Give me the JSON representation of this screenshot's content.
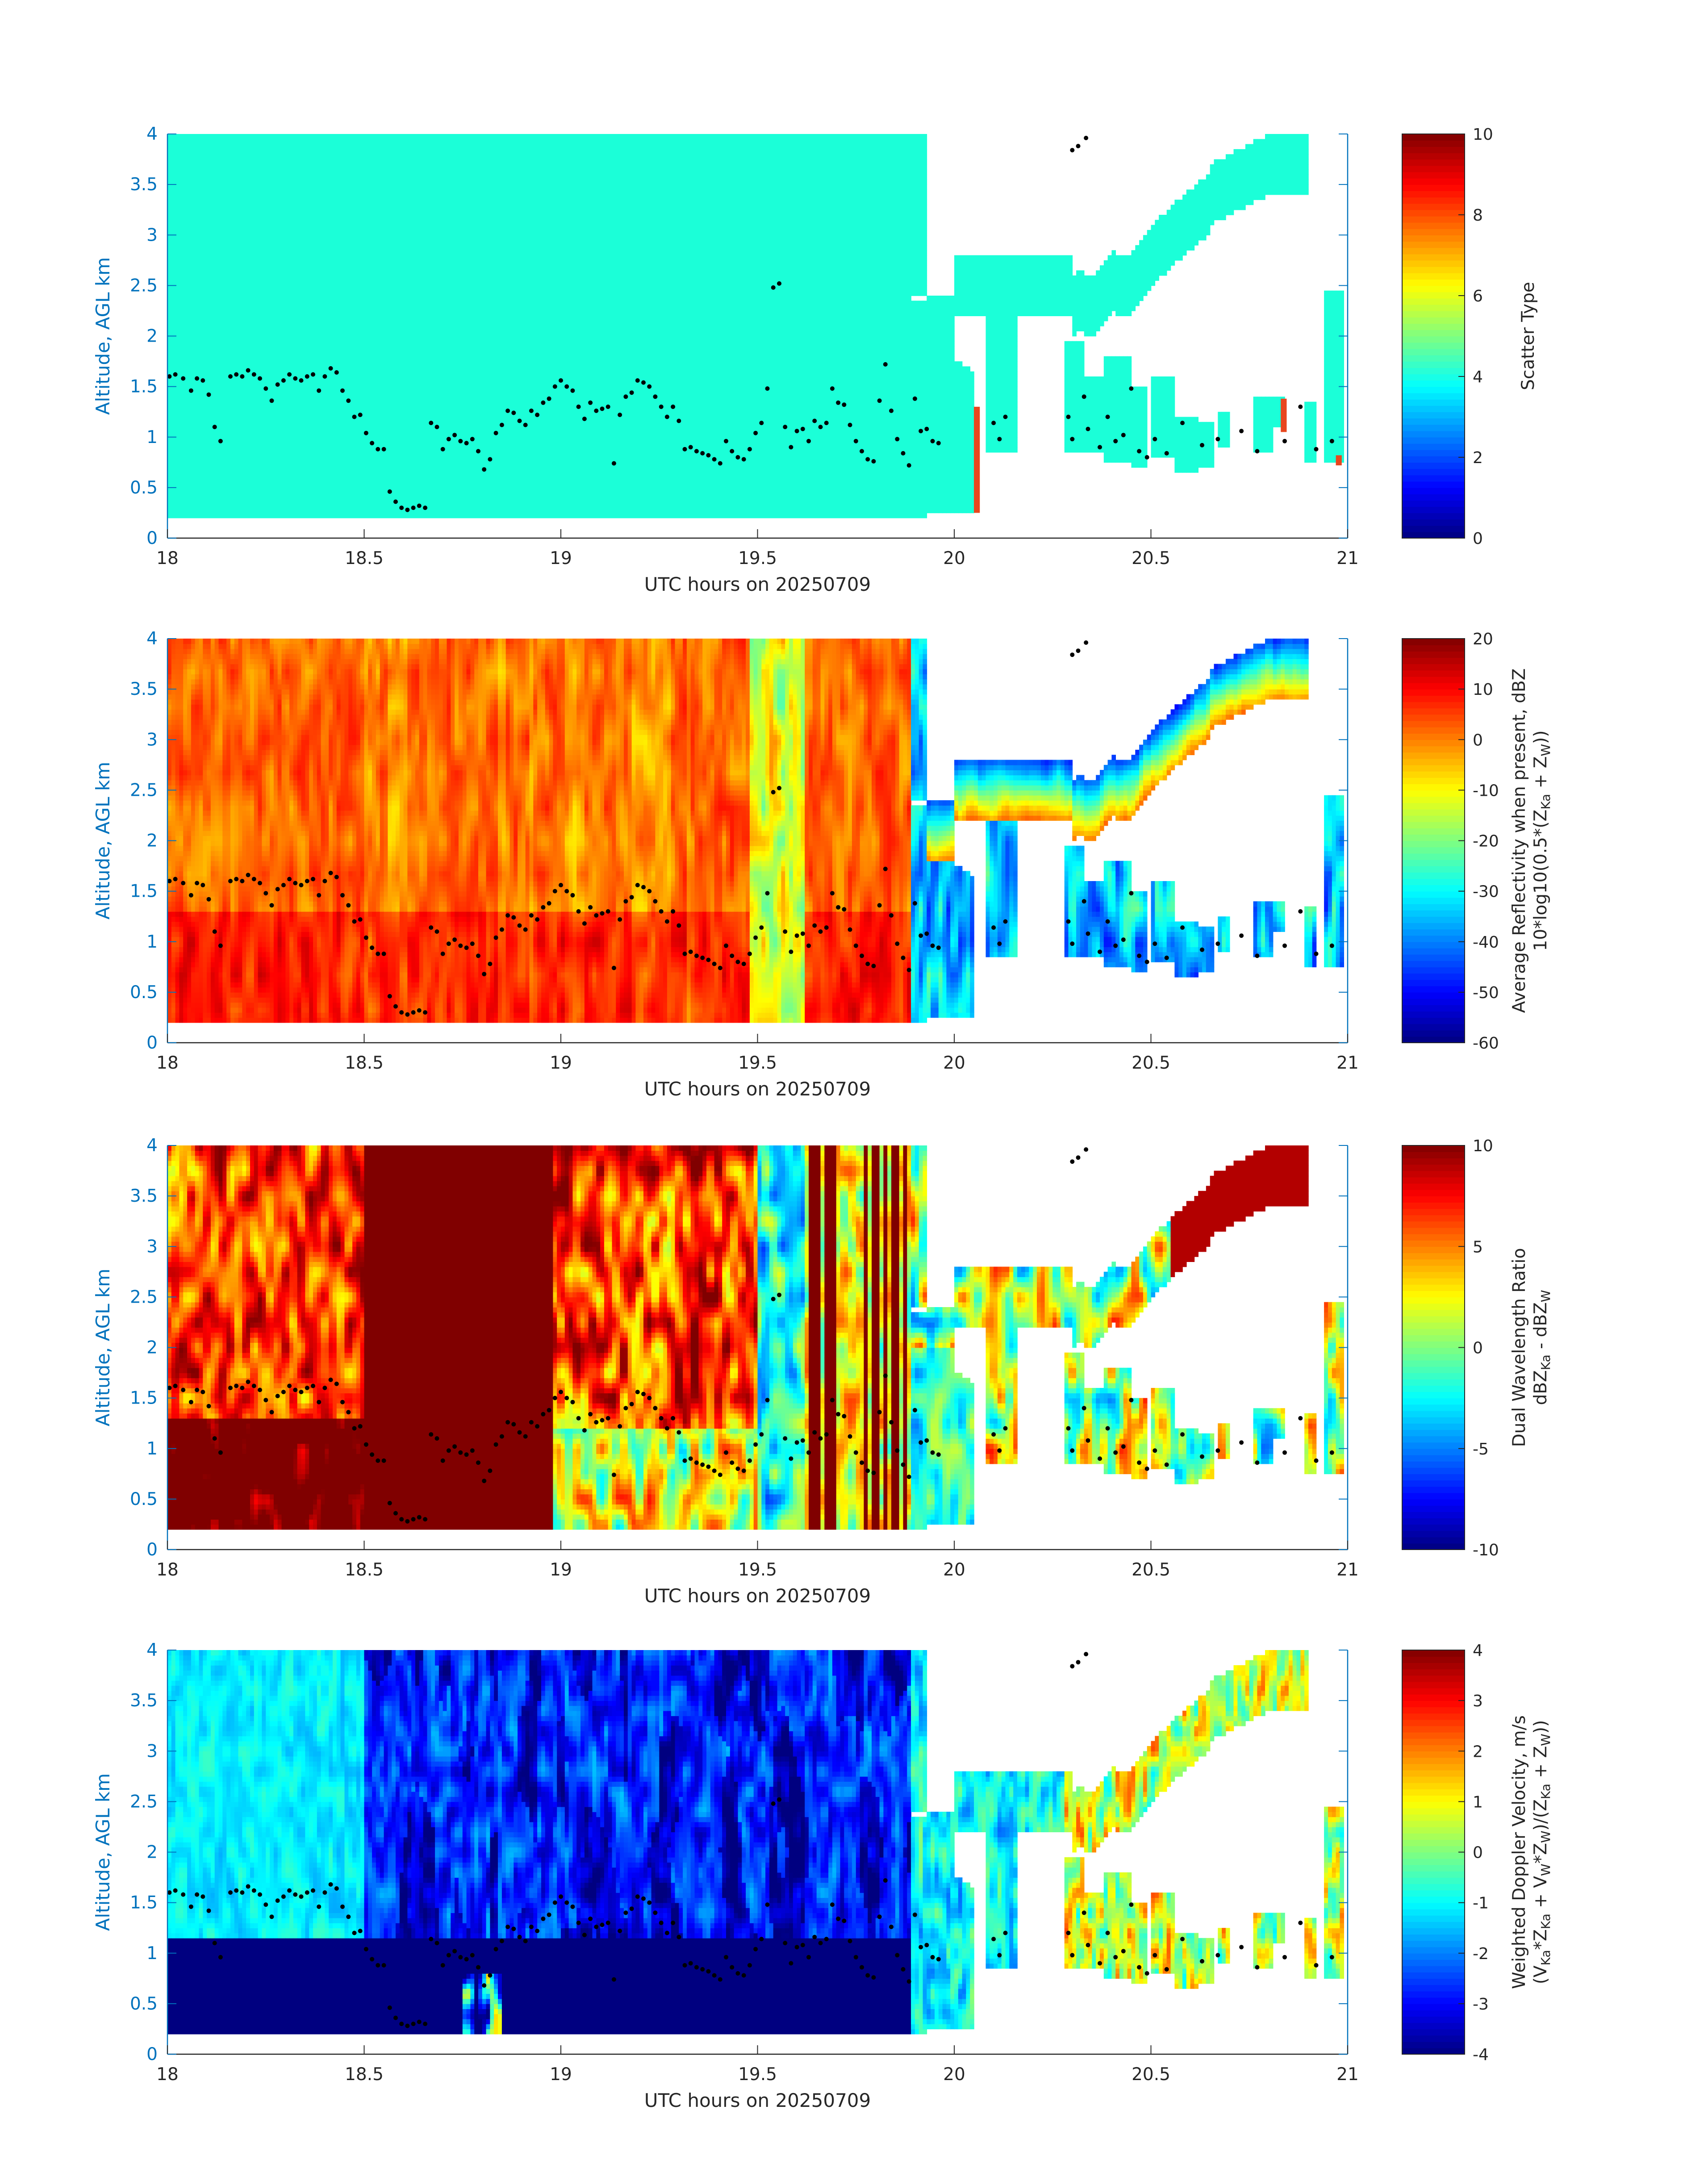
{
  "colors": {
    "axis_blue": "#0072BD",
    "text": "#262626",
    "scatter_fill": "#1BFFD8",
    "markers": "#000000",
    "anomaly": "#E8461E"
  },
  "colormap": "jet",
  "chart_data": [
    {
      "type": "heatmap",
      "name": "scatter-type",
      "xlabel": "UTC hours on 20250709",
      "ylabel": "Altitude, AGL km",
      "xlim": [
        18,
        21
      ],
      "ylim": [
        0,
        4
      ],
      "xticks": [
        "18",
        "18.5",
        "19",
        "19.5",
        "20",
        "20.5",
        "21"
      ],
      "yticks": [
        "0",
        "0.5",
        "1",
        "1.5",
        "2",
        "2.5",
        "3",
        "3.5",
        "4"
      ],
      "colorbar": {
        "label_lines": [
          "Scatter Type"
        ],
        "range": [
          0,
          10
        ],
        "ticks": [
          "0",
          "2",
          "4",
          "6",
          "8",
          "10"
        ]
      },
      "dominant_value": 4,
      "cloud_base_km": 0.2
    },
    {
      "type": "heatmap",
      "name": "average-reflectivity",
      "xlabel": "UTC hours on 20250709",
      "ylabel": "Altitude, AGL km",
      "xlim": [
        18,
        21
      ],
      "ylim": [
        0,
        4
      ],
      "xticks": [
        "18",
        "18.5",
        "19",
        "19.5",
        "20",
        "20.5",
        "21"
      ],
      "yticks": [
        "0",
        "0.5",
        "1",
        "1.5",
        "2",
        "2.5",
        "3",
        "3.5",
        "4"
      ],
      "colorbar": {
        "label_lines": [
          "Average Reflectivity when present, dBZ",
          "10*log10(0.5*(Z",
          "Ka",
          " + Z",
          "W",
          "))"
        ],
        "range": [
          -60,
          20
        ],
        "ticks": [
          "-60",
          "-50",
          "-40",
          "-30",
          "-20",
          "-10",
          "0",
          "10",
          "20"
        ]
      }
    },
    {
      "type": "heatmap",
      "name": "dual-wavelength-ratio",
      "xlabel": "UTC hours on 20250709",
      "ylabel": "Altitude, AGL km",
      "xlim": [
        18,
        21
      ],
      "ylim": [
        0,
        4
      ],
      "xticks": [
        "18",
        "18.5",
        "19",
        "19.5",
        "20",
        "20.5",
        "21"
      ],
      "yticks": [
        "0",
        "0.5",
        "1",
        "1.5",
        "2",
        "2.5",
        "3",
        "3.5",
        "4"
      ],
      "colorbar": {
        "label_lines": [
          "Dual Wavelength Ratio",
          "dBZ",
          "Ka",
          " - dBZ",
          "W"
        ],
        "range": [
          -10,
          10
        ],
        "ticks": [
          "-10",
          "-5",
          "0",
          "5",
          "10"
        ]
      }
    },
    {
      "type": "heatmap",
      "name": "weighted-doppler-velocity",
      "xlabel": "UTC hours on 20250709",
      "ylabel": "Altitude, AGL km",
      "xlim": [
        18,
        21
      ],
      "ylim": [
        0,
        4
      ],
      "xticks": [
        "18",
        "18.5",
        "19",
        "19.5",
        "20",
        "20.5",
        "21"
      ],
      "yticks": [
        "0",
        "0.5",
        "1",
        "1.5",
        "2",
        "2.5",
        "3",
        "3.5",
        "4"
      ],
      "colorbar": {
        "label_lines": [
          "Weighted Doppler Velocity, m/s",
          "(V",
          "Ka",
          "*Z",
          "Ka",
          " + V",
          "W",
          "*Z",
          "W",
          ")/(Z",
          "Ka",
          " + Z",
          "W",
          "))"
        ],
        "range": [
          -4,
          4
        ],
        "ticks": [
          "-4",
          "-3",
          "-2",
          "-1",
          "0",
          "1",
          "2",
          "3",
          "4"
        ]
      }
    }
  ],
  "ceilometer_points": [
    [
      18.005,
      1.6
    ],
    [
      18.02,
      1.62
    ],
    [
      18.04,
      1.58
    ],
    [
      18.06,
      1.46
    ],
    [
      18.075,
      1.58
    ],
    [
      18.09,
      1.56
    ],
    [
      18.105,
      1.42
    ],
    [
      18.12,
      1.1
    ],
    [
      18.135,
      0.96
    ],
    [
      18.16,
      1.6
    ],
    [
      18.175,
      1.62
    ],
    [
      18.19,
      1.6
    ],
    [
      18.205,
      1.66
    ],
    [
      18.22,
      1.62
    ],
    [
      18.235,
      1.58
    ],
    [
      18.25,
      1.48
    ],
    [
      18.265,
      1.36
    ],
    [
      18.28,
      1.52
    ],
    [
      18.295,
      1.56
    ],
    [
      18.31,
      1.62
    ],
    [
      18.325,
      1.58
    ],
    [
      18.34,
      1.56
    ],
    [
      18.355,
      1.6
    ],
    [
      18.37,
      1.62
    ],
    [
      18.385,
      1.46
    ],
    [
      18.4,
      1.6
    ],
    [
      18.415,
      1.68
    ],
    [
      18.43,
      1.64
    ],
    [
      18.445,
      1.46
    ],
    [
      18.46,
      1.36
    ],
    [
      18.475,
      1.2
    ],
    [
      18.49,
      1.22
    ],
    [
      18.505,
      1.04
    ],
    [
      18.52,
      0.94
    ],
    [
      18.535,
      0.88
    ],
    [
      18.55,
      0.88
    ],
    [
      18.565,
      0.46
    ],
    [
      18.58,
      0.36
    ],
    [
      18.595,
      0.3
    ],
    [
      18.61,
      0.28
    ],
    [
      18.625,
      0.3
    ],
    [
      18.64,
      0.32
    ],
    [
      18.655,
      0.3
    ],
    [
      18.67,
      1.14
    ],
    [
      18.685,
      1.1
    ],
    [
      18.7,
      0.88
    ],
    [
      18.715,
      0.98
    ],
    [
      18.73,
      1.02
    ],
    [
      18.745,
      0.96
    ],
    [
      18.76,
      0.94
    ],
    [
      18.775,
      0.98
    ],
    [
      18.79,
      0.86
    ],
    [
      18.805,
      0.68
    ],
    [
      18.82,
      0.78
    ],
    [
      18.835,
      1.04
    ],
    [
      18.85,
      1.12
    ],
    [
      18.865,
      1.26
    ],
    [
      18.88,
      1.24
    ],
    [
      18.895,
      1.16
    ],
    [
      18.91,
      1.12
    ],
    [
      18.925,
      1.26
    ],
    [
      18.94,
      1.22
    ],
    [
      18.955,
      1.34
    ],
    [
      18.97,
      1.38
    ],
    [
      18.985,
      1.5
    ],
    [
      19.0,
      1.56
    ],
    [
      19.015,
      1.5
    ],
    [
      19.03,
      1.46
    ],
    [
      19.045,
      1.3
    ],
    [
      19.06,
      1.18
    ],
    [
      19.075,
      1.34
    ],
    [
      19.09,
      1.26
    ],
    [
      19.105,
      1.28
    ],
    [
      19.12,
      1.3
    ],
    [
      19.135,
      0.74
    ],
    [
      19.15,
      1.22
    ],
    [
      19.165,
      1.4
    ],
    [
      19.18,
      1.44
    ],
    [
      19.195,
      1.56
    ],
    [
      19.21,
      1.54
    ],
    [
      19.225,
      1.5
    ],
    [
      19.24,
      1.4
    ],
    [
      19.255,
      1.3
    ],
    [
      19.27,
      1.2
    ],
    [
      19.285,
      1.3
    ],
    [
      19.3,
      1.16
    ],
    [
      19.315,
      0.88
    ],
    [
      19.33,
      0.9
    ],
    [
      19.345,
      0.86
    ],
    [
      19.36,
      0.84
    ],
    [
      19.375,
      0.82
    ],
    [
      19.39,
      0.78
    ],
    [
      19.405,
      0.74
    ],
    [
      19.42,
      0.96
    ],
    [
      19.435,
      0.86
    ],
    [
      19.45,
      0.8
    ],
    [
      19.465,
      0.78
    ],
    [
      19.48,
      0.88
    ],
    [
      19.495,
      1.04
    ],
    [
      19.51,
      1.14
    ],
    [
      19.525,
      1.48
    ],
    [
      19.54,
      2.48
    ],
    [
      19.555,
      2.52
    ],
    [
      19.57,
      1.1
    ],
    [
      19.585,
      0.9
    ],
    [
      19.6,
      1.06
    ],
    [
      19.615,
      1.08
    ],
    [
      19.63,
      0.96
    ],
    [
      19.645,
      1.16
    ],
    [
      19.66,
      1.1
    ],
    [
      19.675,
      1.14
    ],
    [
      19.69,
      1.48
    ],
    [
      19.705,
      1.34
    ],
    [
      19.72,
      1.32
    ],
    [
      19.735,
      1.12
    ],
    [
      19.75,
      0.96
    ],
    [
      19.765,
      0.86
    ],
    [
      19.78,
      0.78
    ],
    [
      19.795,
      0.76
    ],
    [
      19.81,
      1.36
    ],
    [
      19.825,
      1.72
    ],
    [
      19.84,
      1.26
    ],
    [
      19.855,
      0.98
    ],
    [
      19.87,
      0.84
    ],
    [
      19.885,
      0.72
    ],
    [
      19.9,
      1.38
    ],
    [
      19.915,
      1.06
    ],
    [
      19.93,
      1.08
    ],
    [
      19.945,
      0.96
    ],
    [
      19.96,
      0.94
    ],
    [
      20.1,
      1.14
    ],
    [
      20.115,
      0.98
    ],
    [
      20.13,
      1.2
    ],
    [
      20.29,
      1.2
    ],
    [
      20.3,
      0.98
    ],
    [
      20.33,
      1.4
    ],
    [
      20.34,
      1.08
    ],
    [
      20.37,
      0.9
    ],
    [
      20.39,
      1.2
    ],
    [
      20.41,
      0.96
    ],
    [
      20.43,
      1.02
    ],
    [
      20.45,
      1.48
    ],
    [
      20.47,
      0.86
    ],
    [
      20.49,
      0.8
    ],
    [
      20.51,
      0.98
    ],
    [
      20.54,
      0.84
    ],
    [
      20.58,
      1.14
    ],
    [
      20.63,
      0.92
    ],
    [
      20.67,
      0.98
    ],
    [
      20.73,
      1.06
    ],
    [
      20.77,
      0.86
    ],
    [
      20.84,
      0.96
    ],
    [
      20.88,
      1.3
    ],
    [
      20.92,
      0.88
    ],
    [
      20.96,
      0.96
    ],
    [
      20.3,
      3.84
    ],
    [
      20.315,
      3.88
    ],
    [
      20.335,
      3.96
    ]
  ]
}
